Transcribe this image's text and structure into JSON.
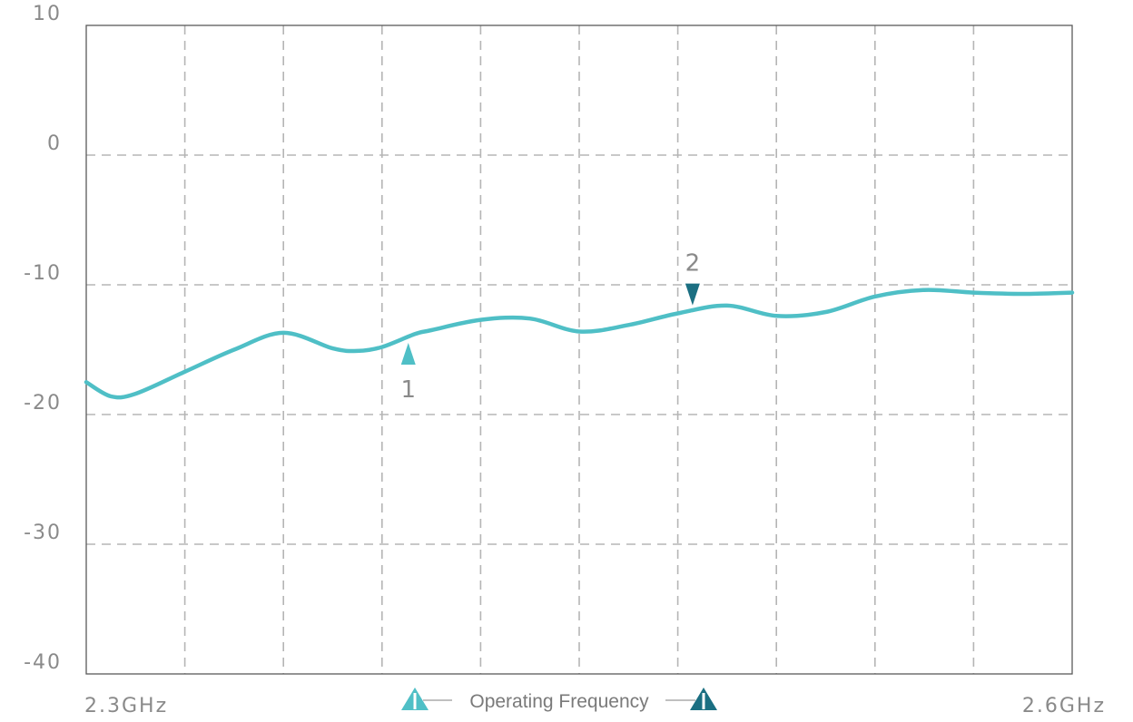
{
  "chart_data": {
    "type": "line",
    "title": "",
    "xlabel": "",
    "ylabel": "",
    "x_tick_labels": [
      "2.3GHz",
      "2.6GHz"
    ],
    "xlim": [
      2.3,
      2.6
    ],
    "ylim": [
      -40,
      10
    ],
    "y_ticks": [
      10,
      0,
      -10,
      -20,
      -30,
      -40
    ],
    "y_tick_labels": [
      "10",
      "0",
      "-10",
      "-20",
      "-30",
      "-40"
    ],
    "grid": true,
    "grid_style": "dashed",
    "x_grid_divisions": 10,
    "series": [
      {
        "color": "#4fbfc6",
        "x": [
          2.3,
          2.3075,
          2.315,
          2.33,
          2.345,
          2.36,
          2.375,
          2.3825,
          2.39,
          2.4,
          2.405,
          2.42,
          2.435,
          2.45,
          2.465,
          2.48,
          2.495,
          2.51,
          2.525,
          2.54,
          2.555,
          2.57,
          2.585,
          2.6
        ],
        "y": [
          -17.5,
          -18.6,
          -18.4,
          -16.7,
          -15.0,
          -13.7,
          -14.9,
          -15.1,
          -14.8,
          -13.8,
          -13.5,
          -12.7,
          -12.6,
          -13.6,
          -13.1,
          -12.2,
          -11.6,
          -12.4,
          -12.1,
          -10.9,
          -10.4,
          -10.6,
          -10.7,
          -10.6
        ]
      }
    ],
    "markers": [
      {
        "label": "1",
        "x": 2.398,
        "y": -14.2,
        "direction": "up",
        "color": "#4fbfc6"
      },
      {
        "label": "2",
        "x": 2.4845,
        "y": -12.0,
        "direction": "down",
        "color": "#1b6f82"
      }
    ],
    "legend": {
      "text": "Operating Frequency",
      "placement": "bottom-center",
      "left_icon_color": "#4fbfc6",
      "right_icon_color": "#1b6f82",
      "icon": "triangle-with-bar-icon"
    }
  }
}
